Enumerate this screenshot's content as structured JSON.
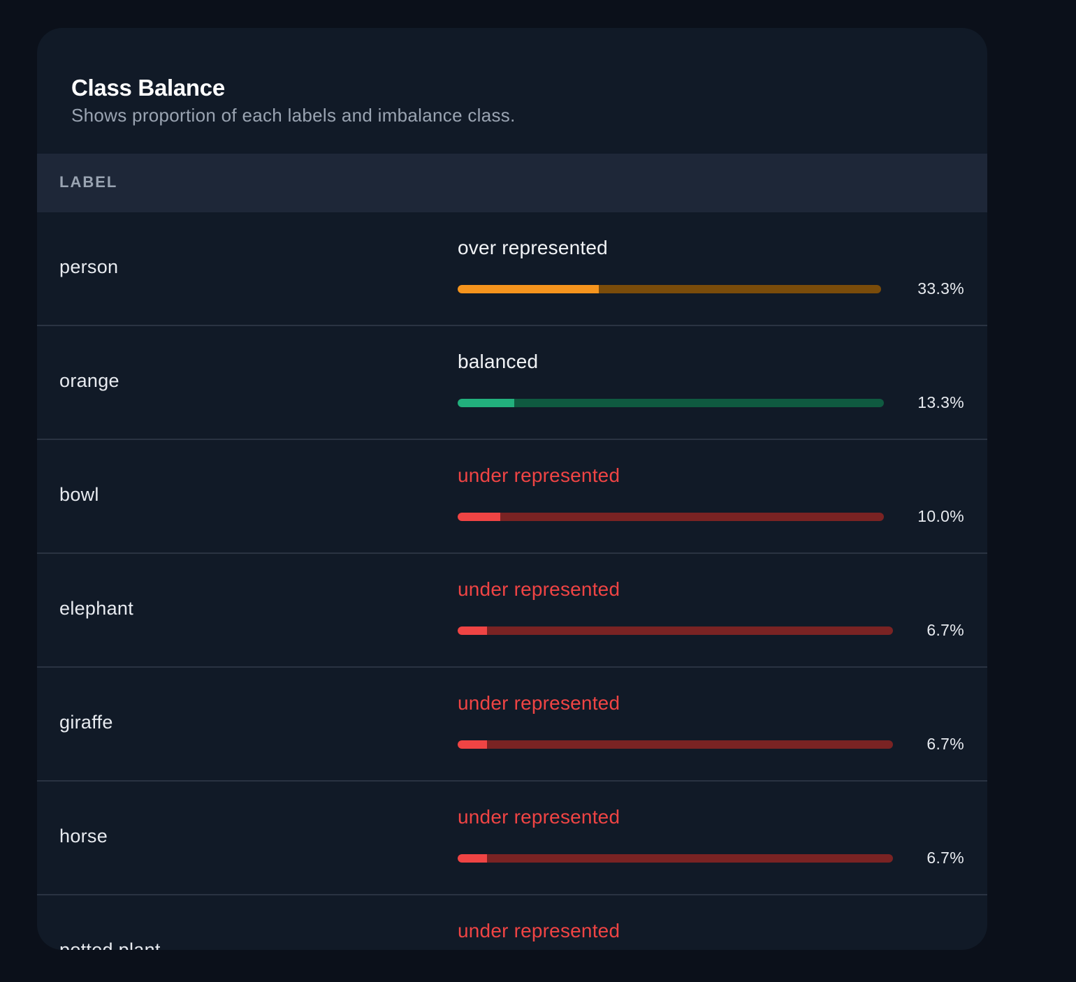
{
  "card": {
    "title": "Class Balance",
    "subtitle": "Shows proportion of each labels and imbalance class."
  },
  "table": {
    "header_label": "LABEL"
  },
  "colors": {
    "over_fill": "#f5941d",
    "over_track": "#7a4c0a",
    "over_text": "#f1f3f6",
    "balanced_fill": "#22b07d",
    "balanced_track": "#0f5a40",
    "balanced_text": "#f1f3f6",
    "under_fill": "#ef4444",
    "under_track": "#7a2323",
    "under_text": "#ef4444"
  },
  "rows": [
    {
      "label": "person",
      "status": "over represented",
      "kind": "over",
      "percent": "33.3%",
      "fraction": 0.333
    },
    {
      "label": "orange",
      "status": "balanced",
      "kind": "balanced",
      "percent": "13.3%",
      "fraction": 0.133
    },
    {
      "label": "bowl",
      "status": "under represented",
      "kind": "under",
      "percent": "10.0%",
      "fraction": 0.1
    },
    {
      "label": "elephant",
      "status": "under represented",
      "kind": "under",
      "percent": "6.7%",
      "fraction": 0.067
    },
    {
      "label": "giraffe",
      "status": "under represented",
      "kind": "under",
      "percent": "6.7%",
      "fraction": 0.067
    },
    {
      "label": "horse",
      "status": "under represented",
      "kind": "under",
      "percent": "6.7%",
      "fraction": 0.067
    },
    {
      "label": "potted plant",
      "status": "under represented",
      "kind": "under",
      "percent": "",
      "fraction": null
    }
  ]
}
